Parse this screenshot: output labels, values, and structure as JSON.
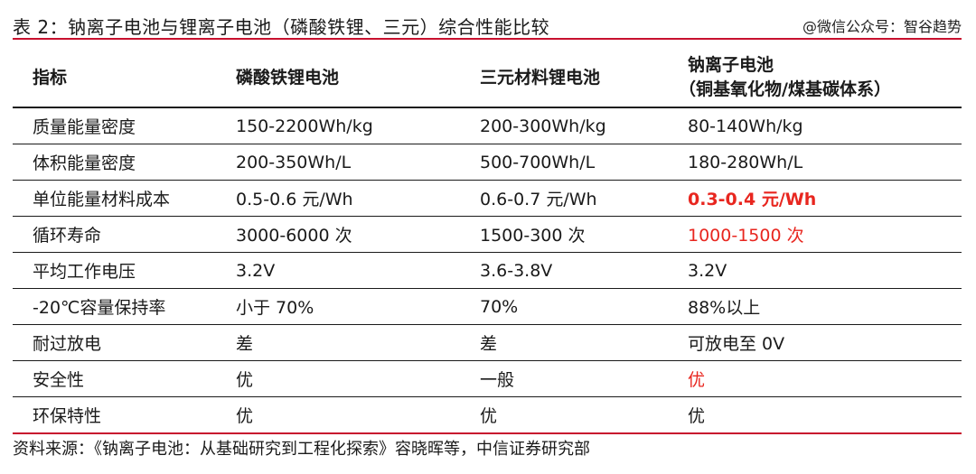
{
  "title": "表 2：钠离子电池与锂离子电池（磷酸铁锂、三元）综合性能比较",
  "watermark": "@微信公众号：智谷趋势",
  "table": {
    "headers": {
      "indicator": "指标",
      "lfp": "磷酸铁锂电池",
      "ternary": "三元材料锂电池",
      "sodium_line1": "钠离子电池",
      "sodium_line2": "（铜基氧化物/煤基碳体系）"
    },
    "rows": [
      {
        "indicator": "质量能量密度",
        "lfp": "150-2200Wh/kg",
        "ternary": "200-300Wh/kg",
        "sodium": "80-140Wh/kg"
      },
      {
        "indicator": "体积能量密度",
        "lfp": "200-350Wh/L",
        "ternary": "500-700Wh/L",
        "sodium": "180-280Wh/L"
      },
      {
        "indicator": "单位能量材料成本",
        "lfp": "0.5-0.6 元/Wh",
        "ternary": "0.6-0.7 元/Wh",
        "sodium": "0.3-0.4 元/Wh"
      },
      {
        "indicator": "循环寿命",
        "lfp": "3000-6000 次",
        "ternary": "1500-300 次",
        "sodium": "1000-1500 次"
      },
      {
        "indicator": "平均工作电压",
        "lfp": "3.2V",
        "ternary": "3.6-3.8V",
        "sodium": "3.2V"
      },
      {
        "indicator": "-20℃容量保持率",
        "lfp": "小于 70%",
        "ternary": "70%",
        "sodium": "88%以上"
      },
      {
        "indicator": "耐过放电",
        "lfp": "差",
        "ternary": "差",
        "sodium": "可放电至 0V"
      },
      {
        "indicator": "安全性",
        "lfp": "优",
        "ternary": "一般",
        "sodium": "优"
      },
      {
        "indicator": "环保特性",
        "lfp": "优",
        "ternary": "优",
        "sodium": "优"
      }
    ]
  },
  "source": "资料来源：《钠离子电池：从基础研究到工程化探索》容晓晖等，中信证券研究部",
  "colors": {
    "accent_red": "#c8102e",
    "highlight_red": "#e8261f",
    "text": "#1a1a1a"
  }
}
